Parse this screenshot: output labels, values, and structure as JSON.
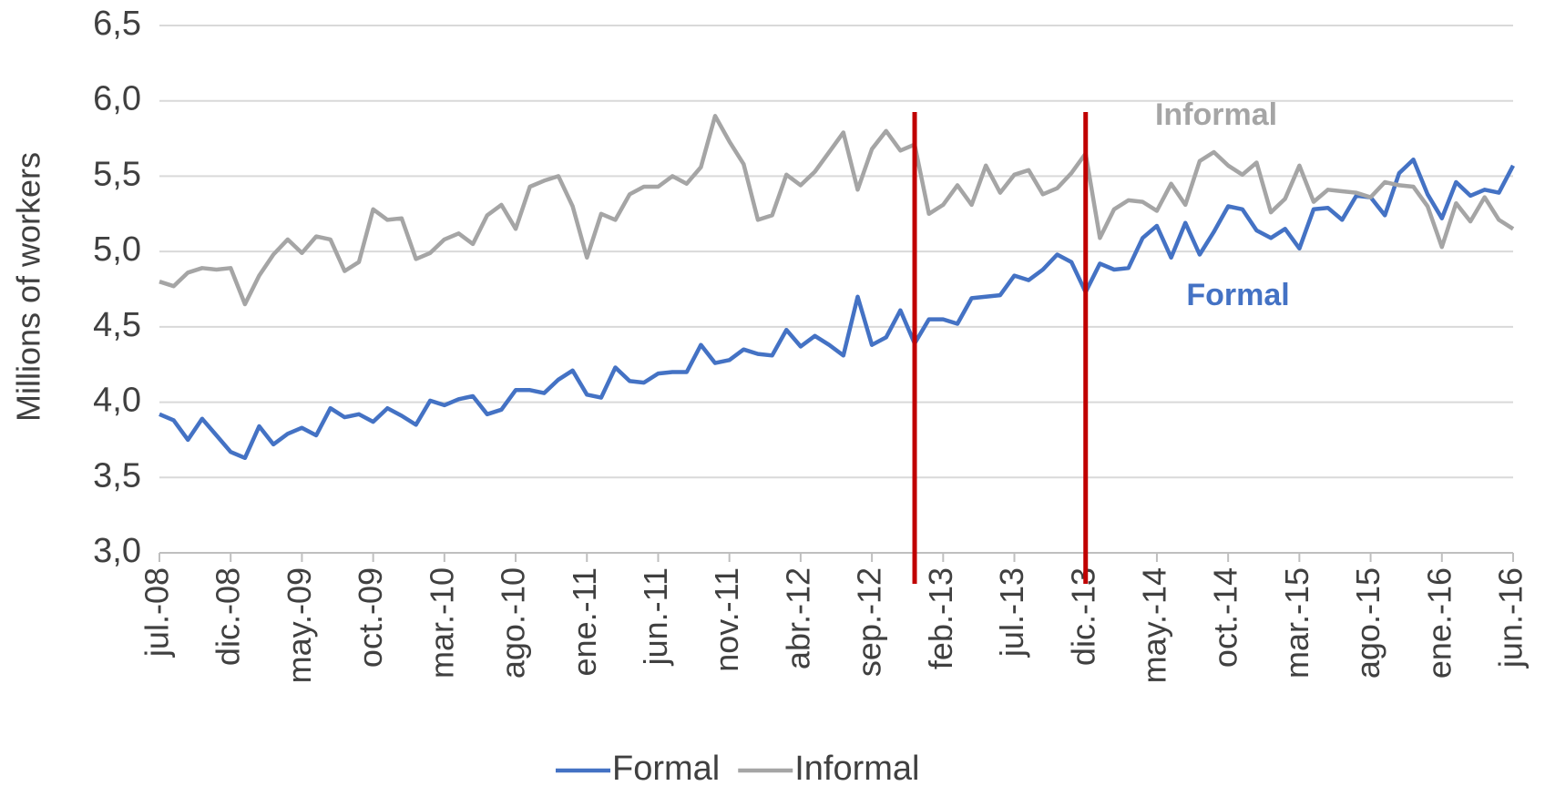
{
  "chart_data": {
    "type": "line",
    "y_label": "Millions of workers",
    "categories": [
      "jul.-08",
      null,
      null,
      null,
      null,
      "dic.-08",
      null,
      null,
      null,
      null,
      "may.-09",
      null,
      null,
      null,
      null,
      "oct.-09",
      null,
      null,
      null,
      null,
      "mar.-10",
      null,
      null,
      null,
      null,
      "ago.-10",
      null,
      null,
      null,
      null,
      "ene.-11",
      null,
      null,
      null,
      null,
      "jun.-11",
      null,
      null,
      null,
      null,
      "nov.-11",
      null,
      null,
      null,
      null,
      "abr.-12",
      null,
      null,
      null,
      null,
      "sep.-12",
      null,
      null,
      null,
      null,
      "feb.-13",
      null,
      null,
      null,
      null,
      "jul.-13",
      null,
      null,
      null,
      null,
      "dic.-13",
      null,
      null,
      null,
      null,
      "may.-14",
      null,
      null,
      null,
      null,
      "oct.-14",
      null,
      null,
      null,
      null,
      "mar.-15",
      null,
      null,
      null,
      null,
      "ago.-15",
      null,
      null,
      null,
      null,
      "ene.-16",
      null,
      null,
      null,
      null,
      "jun.-16"
    ],
    "series": [
      {
        "name": "Formal",
        "color": "#4472c4",
        "values": [
          3.92,
          3.88,
          3.75,
          3.89,
          3.78,
          3.67,
          3.63,
          3.84,
          3.72,
          3.79,
          3.83,
          3.78,
          3.96,
          3.9,
          3.92,
          3.87,
          3.96,
          3.91,
          3.85,
          4.01,
          3.98,
          4.02,
          4.04,
          3.92,
          3.95,
          4.08,
          4.08,
          4.06,
          4.15,
          4.21,
          4.05,
          4.03,
          4.23,
          4.14,
          4.13,
          4.19,
          4.2,
          4.2,
          4.38,
          4.26,
          4.28,
          4.35,
          4.32,
          4.31,
          4.48,
          4.37,
          4.44,
          4.38,
          4.31,
          4.7,
          4.38,
          4.43,
          4.61,
          4.39,
          4.55,
          4.55,
          4.52,
          4.69,
          4.7,
          4.71,
          4.84,
          4.81,
          4.88,
          4.98,
          4.93,
          4.73,
          4.92,
          4.88,
          4.89,
          5.09,
          5.17,
          4.96,
          5.19,
          4.98,
          5.13,
          5.3,
          5.28,
          5.14,
          5.09,
          5.15,
          5.02,
          5.28,
          5.29,
          5.21,
          5.37,
          5.36,
          5.24,
          5.52,
          5.61,
          5.38,
          5.22,
          5.46,
          5.37,
          5.41,
          5.39,
          5.57
        ]
      },
      {
        "name": "Informal",
        "color": "#a5a5a5",
        "values": [
          4.8,
          4.77,
          4.86,
          4.89,
          4.88,
          4.89,
          4.65,
          4.84,
          4.98,
          5.08,
          4.99,
          5.1,
          5.08,
          4.87,
          4.93,
          5.28,
          5.21,
          5.22,
          4.95,
          4.99,
          5.08,
          5.12,
          5.05,
          5.24,
          5.31,
          5.15,
          5.43,
          5.47,
          5.5,
          5.3,
          4.96,
          5.25,
          5.21,
          5.38,
          5.43,
          5.43,
          5.5,
          5.45,
          5.56,
          5.9,
          5.73,
          5.58,
          5.21,
          5.24,
          5.51,
          5.44,
          5.53,
          5.66,
          5.79,
          5.41,
          5.68,
          5.8,
          5.67,
          5.71,
          5.25,
          5.31,
          5.44,
          5.31,
          5.57,
          5.39,
          5.51,
          5.54,
          5.38,
          5.42,
          5.52,
          5.65,
          5.09,
          5.28,
          5.34,
          5.33,
          5.27,
          5.45,
          5.31,
          5.6,
          5.66,
          5.57,
          5.51,
          5.59,
          5.26,
          5.35,
          5.57,
          5.33,
          5.41,
          5.4,
          5.39,
          5.36,
          5.46,
          5.44,
          5.43,
          5.3,
          5.03,
          5.32,
          5.2,
          5.36,
          5.21,
          5.15
        ]
      }
    ],
    "ylim": [
      3.0,
      6.5
    ],
    "yticks": [
      {
        "value": 3.0,
        "label": "3,0"
      },
      {
        "value": 3.5,
        "label": "3,5"
      },
      {
        "value": 4.0,
        "label": "4,0"
      },
      {
        "value": 4.5,
        "label": "4,5"
      },
      {
        "value": 5.0,
        "label": "5,0"
      },
      {
        "value": 5.5,
        "label": "5,5"
      },
      {
        "value": 6.0,
        "label": "6,0"
      },
      {
        "value": 6.5,
        "label": "6,5"
      }
    ],
    "grid": true,
    "legend": "bottom",
    "vlines": [
      53,
      65
    ],
    "vline_color": "#c00000",
    "annotations": [
      {
        "text": "Informal",
        "color": "#a5a5a5"
      },
      {
        "text": "Formal",
        "color": "#4472c4"
      }
    ]
  }
}
